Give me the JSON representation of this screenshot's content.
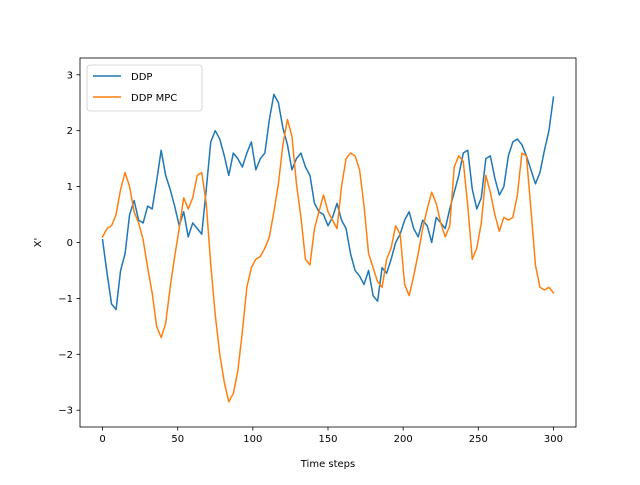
{
  "chart_data": {
    "type": "line",
    "title": "",
    "xlabel": "Time steps",
    "ylabel": "X'",
    "xlim": [
      -15,
      315
    ],
    "ylim": [
      -3.3,
      3.3
    ],
    "xticks": [
      0,
      50,
      100,
      150,
      200,
      250,
      300
    ],
    "yticks": [
      -3,
      -2,
      -1,
      0,
      1,
      2,
      3
    ],
    "xtick_labels": [
      "0",
      "50",
      "100",
      "150",
      "200",
      "250",
      "300"
    ],
    "ytick_labels": [
      "−3",
      "−2",
      "−1",
      "0",
      "1",
      "2",
      "3"
    ],
    "grid": false,
    "legend_position": "top-left",
    "series": [
      {
        "name": "DDP",
        "color": "#1f77b4",
        "x": [
          0,
          3,
          6,
          9,
          12,
          15,
          18,
          21,
          24,
          27,
          30,
          33,
          36,
          39,
          42,
          45,
          48,
          51,
          54,
          57,
          60,
          63,
          66,
          69,
          72,
          75,
          78,
          81,
          84,
          87,
          90,
          93,
          96,
          99,
          102,
          105,
          108,
          111,
          114,
          117,
          120,
          123,
          126,
          129,
          132,
          135,
          138,
          141,
          144,
          147,
          150,
          153,
          156,
          159,
          162,
          165,
          168,
          171,
          174,
          177,
          180,
          183,
          186,
          189,
          192,
          195,
          198,
          201,
          204,
          207,
          210,
          213,
          216,
          219,
          222,
          225,
          228,
          231,
          234,
          237,
          240,
          243,
          246,
          249,
          252,
          255,
          258,
          261,
          264,
          267,
          270,
          273,
          276,
          279,
          282,
          285,
          288,
          291,
          294,
          297,
          300
        ],
        "values": [
          0.05,
          -0.55,
          -1.1,
          -1.2,
          -0.5,
          -0.2,
          0.5,
          0.75,
          0.4,
          0.35,
          0.65,
          0.6,
          1.1,
          1.65,
          1.2,
          0.95,
          0.65,
          0.3,
          0.55,
          0.1,
          0.35,
          0.25,
          0.15,
          0.95,
          1.8,
          2.0,
          1.85,
          1.55,
          1.2,
          1.6,
          1.5,
          1.35,
          1.6,
          1.8,
          1.3,
          1.5,
          1.6,
          2.2,
          2.65,
          2.5,
          2.05,
          1.75,
          1.3,
          1.5,
          1.6,
          1.35,
          1.2,
          0.7,
          0.55,
          0.5,
          0.3,
          0.45,
          0.7,
          0.4,
          0.25,
          -0.2,
          -0.5,
          -0.6,
          -0.75,
          -0.5,
          -0.95,
          -1.05,
          -0.45,
          -0.55,
          -0.3,
          0.0,
          0.15,
          0.4,
          0.55,
          0.25,
          0.1,
          0.4,
          0.3,
          0.0,
          0.45,
          0.35,
          0.25,
          0.6,
          0.9,
          1.2,
          1.6,
          1.65,
          0.95,
          0.6,
          0.8,
          1.5,
          1.55,
          1.15,
          0.85,
          1.0,
          1.55,
          1.8,
          1.85,
          1.75,
          1.55,
          1.3,
          1.05,
          1.25,
          1.65,
          2.0,
          2.6
        ]
      },
      {
        "name": "DDP MPC",
        "color": "#ff7f0e",
        "x": [
          0,
          3,
          6,
          9,
          12,
          15,
          18,
          21,
          24,
          27,
          30,
          33,
          36,
          39,
          42,
          45,
          48,
          51,
          54,
          57,
          60,
          63,
          66,
          69,
          72,
          75,
          78,
          81,
          84,
          87,
          90,
          93,
          96,
          99,
          102,
          105,
          108,
          111,
          114,
          117,
          120,
          123,
          126,
          129,
          132,
          135,
          138,
          141,
          144,
          147,
          150,
          153,
          156,
          159,
          162,
          165,
          168,
          171,
          174,
          177,
          180,
          183,
          186,
          189,
          192,
          195,
          198,
          201,
          204,
          207,
          210,
          213,
          216,
          219,
          222,
          225,
          228,
          231,
          234,
          237,
          240,
          243,
          246,
          249,
          252,
          255,
          258,
          261,
          264,
          267,
          270,
          273,
          276,
          279,
          282,
          285,
          288,
          291,
          294,
          297,
          300
        ],
        "values": [
          0.1,
          0.25,
          0.3,
          0.5,
          0.95,
          1.25,
          1.0,
          0.55,
          0.35,
          0.05,
          -0.45,
          -0.9,
          -1.5,
          -1.7,
          -1.45,
          -0.8,
          -0.25,
          0.25,
          0.8,
          0.6,
          0.8,
          1.2,
          1.25,
          0.7,
          -0.4,
          -1.3,
          -2.0,
          -2.5,
          -2.85,
          -2.7,
          -2.3,
          -1.6,
          -0.8,
          -0.45,
          -0.3,
          -0.25,
          -0.1,
          0.1,
          0.55,
          1.05,
          1.75,
          2.2,
          1.9,
          1.05,
          0.45,
          -0.3,
          -0.4,
          0.25,
          0.55,
          0.85,
          0.55,
          0.4,
          0.25,
          1.0,
          1.5,
          1.6,
          1.55,
          1.3,
          0.65,
          -0.2,
          -0.45,
          -0.7,
          -0.8,
          -0.3,
          -0.1,
          0.3,
          0.15,
          -0.75,
          -0.95,
          -0.6,
          -0.2,
          0.25,
          0.6,
          0.9,
          0.7,
          0.35,
          0.1,
          0.3,
          1.35,
          1.55,
          1.45,
          0.65,
          -0.3,
          -0.1,
          0.35,
          1.2,
          0.9,
          0.5,
          0.2,
          0.45,
          0.4,
          0.45,
          0.85,
          1.6,
          1.55,
          0.6,
          -0.4,
          -0.8,
          -0.85,
          -0.8,
          -0.9
        ]
      }
    ]
  }
}
